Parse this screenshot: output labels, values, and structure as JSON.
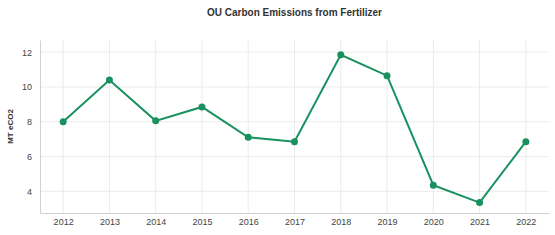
{
  "chart_data": {
    "type": "line",
    "title": "OU Carbon Emissions from Fertilizer",
    "y_label": "MT eCO2",
    "x": [
      2012,
      2013,
      2014,
      2015,
      2016,
      2017,
      2018,
      2019,
      2020,
      2021,
      2022
    ],
    "values": [
      8.0,
      10.4,
      8.05,
      8.85,
      7.1,
      6.85,
      11.85,
      10.65,
      4.35,
      3.35,
      6.85
    ],
    "color": "#18915e",
    "marker": "circle",
    "grid": true,
    "xlim": [
      2011.5,
      2022.5
    ],
    "xticks": [
      2012,
      2013,
      2014,
      2015,
      2016,
      2017,
      2018,
      2019,
      2020,
      2021,
      2022
    ],
    "ylim": [
      2.75,
      12.7
    ],
    "yticks": [
      4,
      6,
      8,
      10,
      12
    ]
  }
}
